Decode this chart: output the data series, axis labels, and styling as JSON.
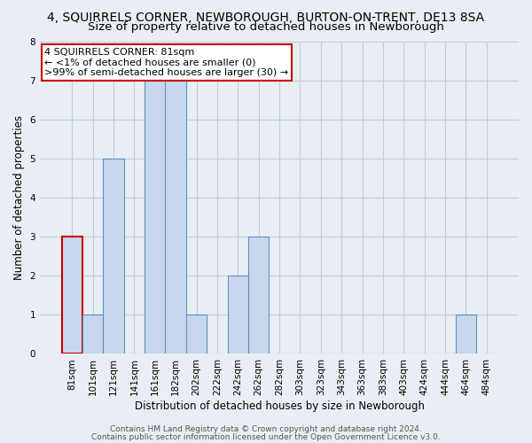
{
  "title": "4, SQUIRRELS CORNER, NEWBOROUGH, BURTON-ON-TRENT, DE13 8SA",
  "subtitle": "Size of property relative to detached houses in Newborough",
  "xlabel": "Distribution of detached houses by size in Newborough",
  "ylabel": "Number of detached properties",
  "bar_color": "#c8d8ec",
  "bar_edge_color": "#6090c0",
  "categories": [
    "81sqm",
    "101sqm",
    "121sqm",
    "141sqm",
    "161sqm",
    "182sqm",
    "202sqm",
    "222sqm",
    "242sqm",
    "262sqm",
    "282sqm",
    "303sqm",
    "323sqm",
    "343sqm",
    "363sqm",
    "383sqm",
    "403sqm",
    "424sqm",
    "444sqm",
    "464sqm",
    "484sqm"
  ],
  "values": [
    3,
    1,
    5,
    0,
    7,
    7,
    1,
    0,
    2,
    3,
    0,
    0,
    0,
    0,
    0,
    0,
    0,
    0,
    0,
    1,
    0
  ],
  "ylim": [
    0,
    8
  ],
  "yticks": [
    0,
    1,
    2,
    3,
    4,
    5,
    6,
    7,
    8
  ],
  "annotation_title": "4 SQUIRRELS CORNER: 81sqm",
  "annotation_line1": "← <1% of detached houses are smaller (0)",
  "annotation_line2": ">99% of semi-detached houses are larger (30) →",
  "annotation_box_color": "white",
  "annotation_box_edge_color": "#cc0000",
  "highlight_bar_index": 0,
  "highlight_bar_edge_color": "#cc0000",
  "footer_line1": "Contains HM Land Registry data © Crown copyright and database right 2024.",
  "footer_line2": "Contains public sector information licensed under the Open Government Licence v3.0.",
  "background_color": "#e8eef4",
  "plot_background_color": "#e8eef4",
  "grid_color": "#c0ccd8",
  "title_fontsize": 10,
  "subtitle_fontsize": 9.5,
  "tick_fontsize": 7.5,
  "label_fontsize": 8.5,
  "footer_fontsize": 6.5,
  "annotation_fontsize": 8
}
